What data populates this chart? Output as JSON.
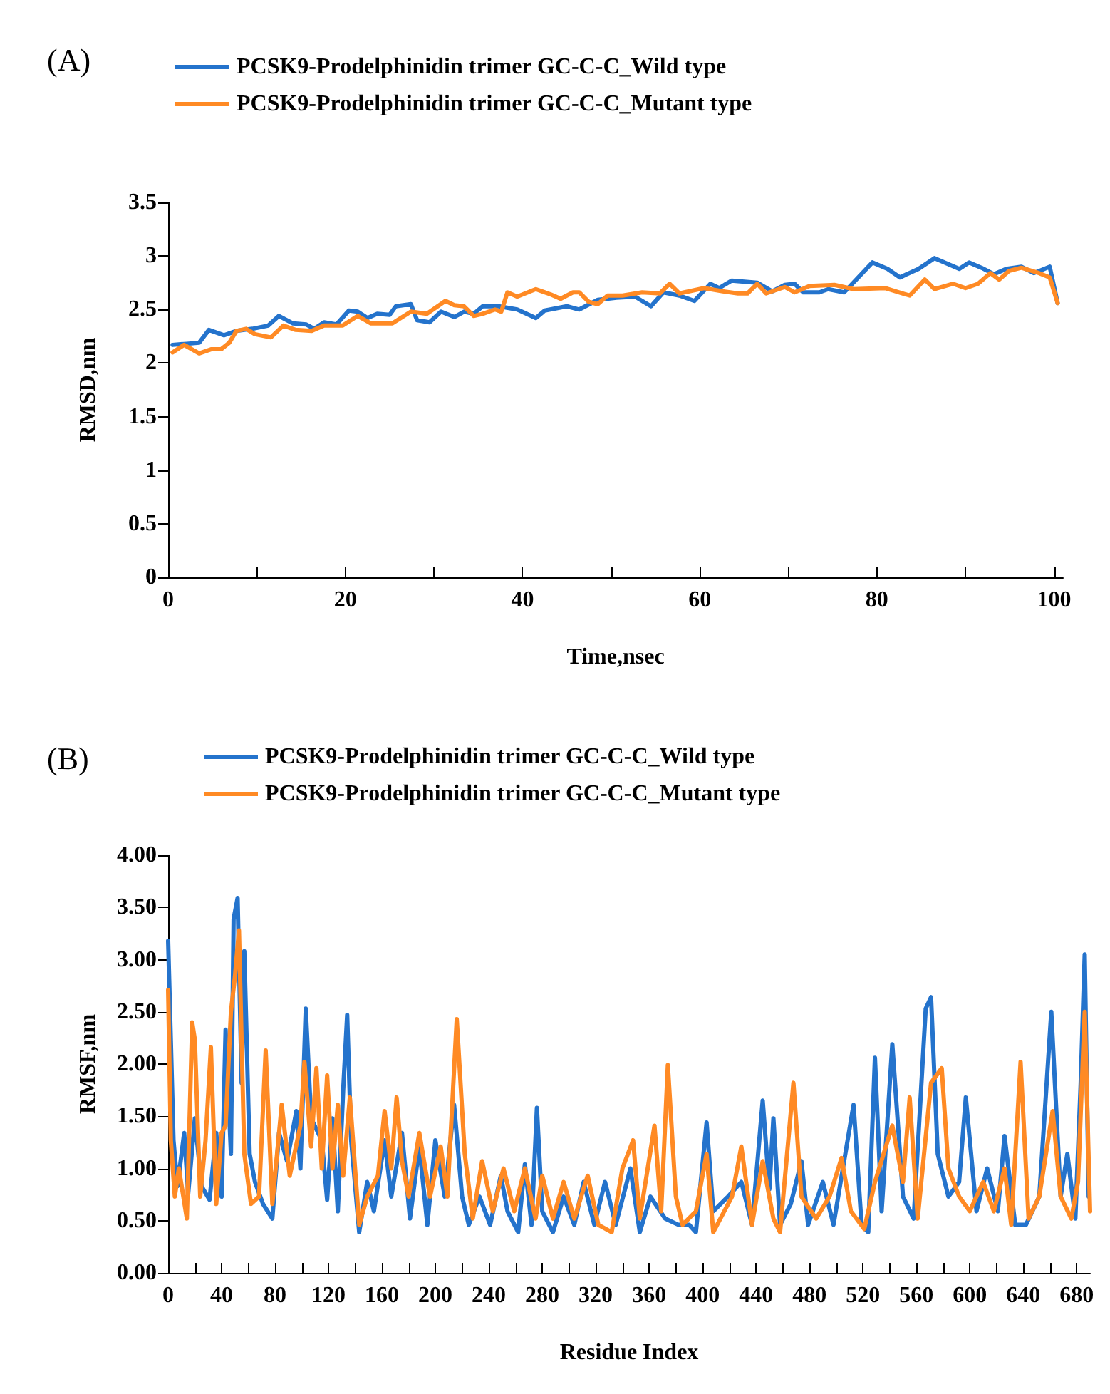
{
  "chart_data": [
    {
      "type": "line",
      "title": "(A)",
      "xlabel": "Time,nsec",
      "ylabel": "RMSD,nm",
      "legend": "top",
      "grid": false,
      "marker": "none",
      "line_style": "solid",
      "xlim": [
        0,
        101
      ],
      "ylim": [
        0,
        3.5
      ],
      "xticks": [
        0,
        {
          "value": 10,
          "label": null
        },
        20,
        {
          "value": 30,
          "label": null
        },
        40,
        {
          "value": 50,
          "label": null
        },
        60,
        {
          "value": 70,
          "label": null
        },
        80,
        {
          "value": 90,
          "label": null
        },
        100
      ],
      "yticks": [
        0,
        0.5,
        1,
        1.5,
        2,
        2.5,
        3,
        3.5
      ],
      "series": [
        {
          "name": "PCSK9-Prodelphinidin trimer GC-C-C_Wild type",
          "color": "#2473cc",
          "x": [
            0.5,
            2.1,
            3.5,
            4.6,
            6.3,
            7.7,
            9.5,
            11.3,
            12.5,
            14.1,
            15.6,
            16.5,
            17.6,
            19,
            20.4,
            21.4,
            22.5,
            23.6,
            25,
            25.7,
            27.4,
            28.1,
            29.5,
            30.8,
            32.3,
            33.4,
            34.5,
            35.5,
            37.3,
            39.4,
            41.5,
            42.5,
            45,
            46.4,
            48.5,
            50.6,
            52.7,
            54.5,
            55.9,
            57.7,
            59.4,
            61.2,
            62.2,
            63.6,
            66.5,
            68.2,
            69.6,
            70.7,
            71.7,
            73.5,
            74.5,
            76.3,
            79.5,
            81.2,
            82.6,
            84.7,
            86.5,
            87.9,
            89.3,
            90.4,
            91.8,
            93.2,
            94.6,
            96.3,
            97.7,
            99.5,
            100.4
          ],
          "values": [
            2.17,
            2.18,
            2.19,
            2.31,
            2.26,
            2.3,
            2.32,
            2.35,
            2.44,
            2.37,
            2.36,
            2.32,
            2.38,
            2.36,
            2.49,
            2.48,
            2.42,
            2.46,
            2.45,
            2.53,
            2.55,
            2.4,
            2.38,
            2.48,
            2.43,
            2.48,
            2.46,
            2.53,
            2.53,
            2.5,
            2.42,
            2.49,
            2.53,
            2.5,
            2.59,
            2.61,
            2.62,
            2.53,
            2.66,
            2.63,
            2.58,
            2.74,
            2.7,
            2.77,
            2.75,
            2.67,
            2.73,
            2.74,
            2.66,
            2.66,
            2.69,
            2.66,
            2.94,
            2.88,
            2.8,
            2.88,
            2.98,
            2.93,
            2.88,
            2.94,
            2.89,
            2.83,
            2.88,
            2.9,
            2.84,
            2.9,
            2.56
          ]
        },
        {
          "name": "PCSK9-Prodelphinidin trimer GC-C-C_Mutant type",
          "color": "#ff8a24",
          "x": [
            0.5,
            1.8,
            3.5,
            4.9,
            6,
            6.9,
            7.7,
            8.8,
            9.8,
            11.6,
            13,
            14.4,
            16.2,
            17.6,
            19.7,
            21.4,
            22.9,
            25.3,
            27.4,
            29.2,
            31.3,
            32.3,
            33.4,
            34.5,
            35.5,
            36.9,
            37.6,
            38.3,
            39.4,
            41.5,
            43.2,
            44.3,
            45.7,
            46.4,
            47.5,
            48.5,
            49.6,
            51.3,
            53.5,
            55.5,
            56.6,
            57.7,
            60.5,
            62.6,
            64.3,
            65.4,
            66.5,
            67.5,
            69.6,
            70.7,
            72.4,
            75.2,
            77.4,
            80.9,
            83.7,
            85.4,
            86.5,
            88.6,
            90,
            91.4,
            92.8,
            93.8,
            94.9,
            96.3,
            98.3,
            99.5,
            100.4
          ],
          "values": [
            2.1,
            2.17,
            2.09,
            2.13,
            2.13,
            2.19,
            2.3,
            2.32,
            2.27,
            2.24,
            2.35,
            2.31,
            2.3,
            2.35,
            2.35,
            2.44,
            2.37,
            2.37,
            2.48,
            2.46,
            2.58,
            2.54,
            2.53,
            2.44,
            2.46,
            2.5,
            2.48,
            2.66,
            2.62,
            2.69,
            2.64,
            2.6,
            2.66,
            2.66,
            2.57,
            2.55,
            2.63,
            2.63,
            2.66,
            2.65,
            2.74,
            2.65,
            2.7,
            2.67,
            2.65,
            2.65,
            2.74,
            2.65,
            2.71,
            2.66,
            2.72,
            2.73,
            2.69,
            2.7,
            2.63,
            2.78,
            2.69,
            2.74,
            2.7,
            2.74,
            2.84,
            2.78,
            2.86,
            2.89,
            2.84,
            2.8,
            2.56
          ]
        }
      ]
    },
    {
      "type": "line",
      "title": "(B)",
      "xlabel": "Residue Index",
      "ylabel": "RMSF,nm",
      "legend": "top",
      "grid": false,
      "marker": "none",
      "line_style": "solid",
      "xlim": [
        0,
        690
      ],
      "ylim": [
        0,
        4
      ],
      "xticks": [
        0,
        {
          "value": 20,
          "label": null
        },
        40,
        {
          "value": 60,
          "label": null
        },
        80,
        {
          "value": 100,
          "label": null
        },
        120,
        {
          "value": 140,
          "label": null
        },
        160,
        {
          "value": 180,
          "label": null
        },
        200,
        {
          "value": 220,
          "label": null
        },
        240,
        {
          "value": 260,
          "label": null
        },
        280,
        {
          "value": 300,
          "label": null
        },
        320,
        {
          "value": 340,
          "label": null
        },
        360,
        {
          "value": 380,
          "label": null
        },
        400,
        {
          "value": 420,
          "label": null
        },
        440,
        {
          "value": 460,
          "label": null
        },
        480,
        {
          "value": 500,
          "label": null
        },
        520,
        {
          "value": 540,
          "label": null
        },
        560,
        {
          "value": 580,
          "label": null
        },
        600,
        {
          "value": 620,
          "label": null
        },
        640,
        {
          "value": 660,
          "label": null
        },
        680
      ],
      "yticks": [
        {
          "value": 0,
          "label": "0.00"
        },
        {
          "value": 0.5,
          "label": "0.50"
        },
        {
          "value": 1,
          "label": "1.00"
        },
        {
          "value": 1.5,
          "label": "1.50"
        },
        {
          "value": 2,
          "label": "2.00"
        },
        {
          "value": 2.5,
          "label": "2.50"
        },
        {
          "value": 3,
          "label": "3.00"
        },
        {
          "value": 3.5,
          "label": "3.50"
        },
        {
          "value": 4,
          "label": "4.00"
        }
      ],
      "series": [
        {
          "name": "PCSK9-Prodelphinidin trimer GC-C-C_Wild type",
          "color": "#2473cc",
          "x": [
            0,
            2,
            4,
            7,
            12,
            15,
            20,
            25,
            31,
            36,
            40,
            43,
            47,
            49,
            52,
            55,
            57,
            61,
            65,
            71,
            78,
            83,
            89,
            96,
            99,
            103,
            107,
            115,
            119,
            123,
            127,
            131,
            134,
            137,
            143,
            149,
            154,
            162,
            167,
            175,
            181,
            188,
            194,
            200,
            207,
            214,
            220,
            225,
            233,
            241,
            249,
            254,
            262,
            267,
            272,
            276,
            280,
            288,
            296,
            304,
            311,
            319,
            327,
            335,
            346,
            353,
            361,
            372,
            382,
            390,
            395,
            403,
            408,
            419,
            429,
            437,
            445,
            450,
            453,
            458,
            466,
            474,
            479,
            490,
            498,
            505,
            513,
            519,
            524,
            529,
            534,
            542,
            550,
            558,
            567,
            571,
            576,
            584,
            592,
            597,
            605,
            613,
            621,
            626,
            634,
            642,
            652,
            661,
            668,
            673,
            679,
            683,
            686,
            689
          ],
          "values": [
            3.18,
            2.23,
            1.27,
            0.83,
            1.34,
            0.76,
            1.48,
            0.83,
            0.7,
            1.34,
            0.73,
            2.33,
            1.14,
            3.39,
            3.59,
            1.82,
            3.08,
            1.14,
            0.87,
            0.66,
            0.52,
            1.34,
            1.07,
            1.55,
            1,
            2.53,
            1.48,
            1.27,
            0.7,
            1.48,
            0.59,
            1.75,
            2.47,
            1.27,
            0.39,
            0.87,
            0.59,
            1.27,
            0.73,
            1.34,
            0.52,
            1.21,
            0.46,
            1.27,
            0.73,
            1.61,
            0.73,
            0.46,
            0.73,
            0.46,
            0.93,
            0.59,
            0.39,
            1.04,
            0.46,
            1.58,
            0.59,
            0.39,
            0.73,
            0.46,
            0.87,
            0.46,
            0.87,
            0.46,
            1,
            0.39,
            0.73,
            0.52,
            0.46,
            0.46,
            0.39,
            1.44,
            0.59,
            0.73,
            0.87,
            0.46,
            1.65,
            0.8,
            1.48,
            0.46,
            0.66,
            1.07,
            0.46,
            0.87,
            0.46,
            1,
            1.61,
            0.46,
            0.39,
            2.06,
            0.59,
            2.19,
            0.73,
            0.52,
            2.53,
            2.64,
            1.14,
            0.73,
            0.87,
            1.68,
            0.59,
            1,
            0.59,
            1.31,
            0.46,
            0.46,
            0.73,
            2.5,
            0.73,
            1.14,
            0.52,
            1.82,
            3.05,
            0.73
          ]
        },
        {
          "name": "PCSK9-Prodelphinidin trimer GC-C-C_Mutant type",
          "color": "#ff8a24",
          "x": [
            0,
            2,
            5,
            8,
            14,
            18,
            20,
            24,
            28,
            32,
            36,
            40,
            43,
            47,
            50,
            53,
            57,
            62,
            68,
            73,
            78,
            85,
            91,
            99,
            102,
            107,
            111,
            115,
            119,
            123,
            127,
            131,
            136,
            143,
            149,
            157,
            162,
            167,
            171,
            175,
            180,
            188,
            196,
            204,
            209,
            216,
            222,
            228,
            235,
            243,
            251,
            259,
            267,
            275,
            280,
            288,
            296,
            304,
            314,
            322,
            332,
            340,
            348,
            353,
            364,
            369,
            374,
            380,
            385,
            395,
            403,
            408,
            422,
            429,
            437,
            445,
            453,
            458,
            468,
            474,
            485,
            495,
            504,
            511,
            521,
            529,
            542,
            550,
            555,
            561,
            571,
            579,
            584,
            592,
            600,
            610,
            618,
            626,
            631,
            638,
            644,
            652,
            662,
            668,
            676,
            681,
            686,
            690
          ],
          "values": [
            2.71,
            1.27,
            0.73,
            1,
            0.52,
            2.4,
            2.23,
            0.73,
            1.27,
            2.16,
            0.66,
            1.34,
            1.41,
            2.5,
            2.84,
            3.28,
            1.14,
            0.66,
            0.73,
            2.13,
            0.66,
            1.61,
            0.93,
            1.41,
            2.02,
            1.21,
            1.96,
            1,
            1.89,
            1,
            1.61,
            0.93,
            1.68,
            0.46,
            0.73,
            0.93,
            1.55,
            1,
            1.68,
            1.07,
            0.73,
            1.34,
            0.73,
            1.21,
            0.73,
            2.43,
            1.14,
            0.52,
            1.07,
            0.59,
            1,
            0.59,
            1,
            0.52,
            0.93,
            0.52,
            0.87,
            0.52,
            0.93,
            0.46,
            0.39,
            1,
            1.27,
            0.52,
            1.41,
            0.59,
            1.99,
            0.73,
            0.46,
            0.59,
            1.14,
            0.39,
            0.73,
            1.21,
            0.46,
            1.07,
            0.52,
            0.39,
            1.82,
            0.73,
            0.52,
            0.73,
            1.1,
            0.59,
            0.42,
            0.87,
            1.41,
            0.87,
            1.68,
            0.52,
            1.82,
            1.96,
            1,
            0.73,
            0.59,
            0.87,
            0.59,
            1,
            0.46,
            2.02,
            0.52,
            0.73,
            1.55,
            0.73,
            0.52,
            0.87,
            2.5,
            0.59
          ]
        }
      ]
    }
  ]
}
